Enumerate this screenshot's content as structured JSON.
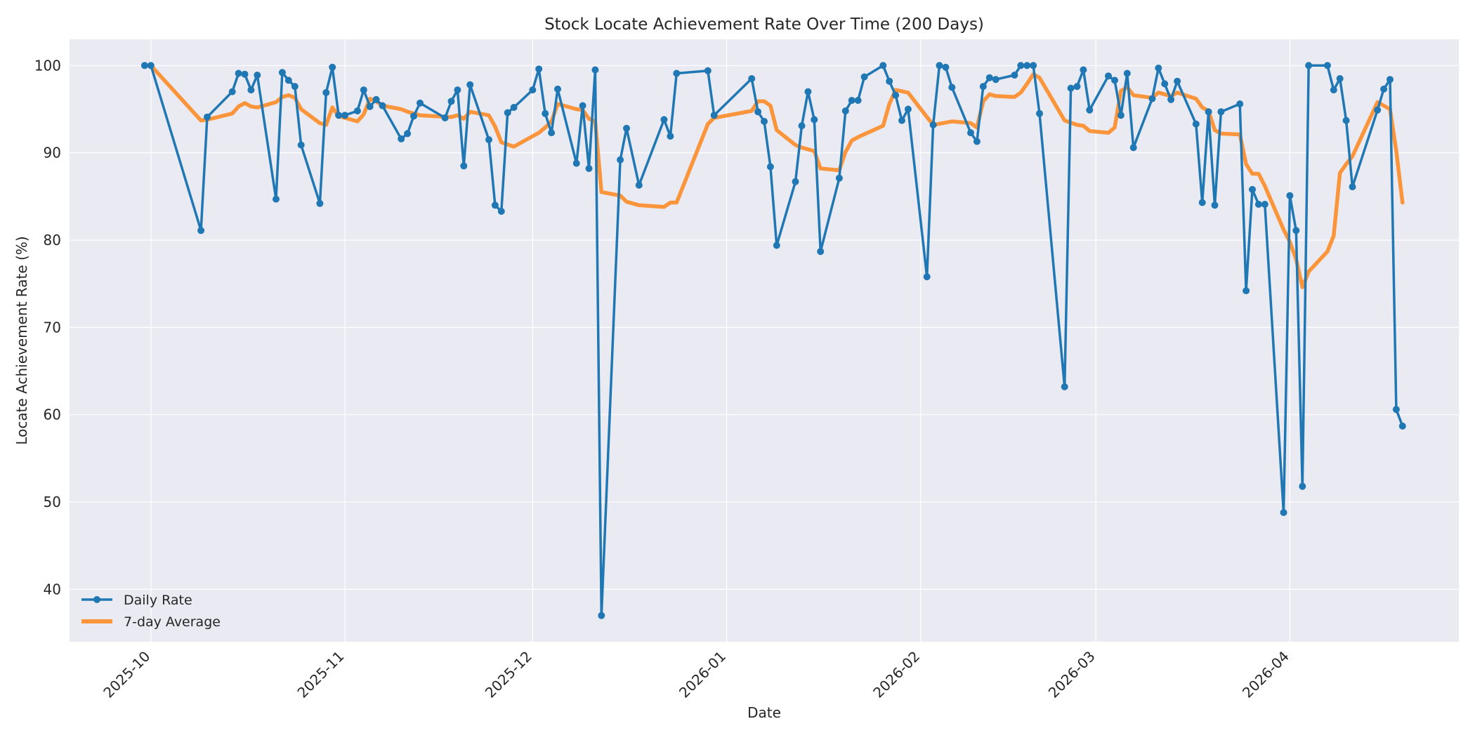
{
  "chart_data": {
    "type": "line",
    "title": "Stock Locate Achievement Rate Over Time (200 Days)",
    "xlabel": "Date",
    "ylabel": "Locate Achievement Rate (%)",
    "x_tick_labels": [
      "2025-10",
      "2025-11",
      "2025-12",
      "2026-01",
      "2026-02",
      "2026-03",
      "2026-04"
    ],
    "x_tick_dates": [
      "2025-10-01",
      "2025-11-01",
      "2025-12-01",
      "2026-01-01",
      "2026-02-01",
      "2026-03-01",
      "2026-04-01"
    ],
    "xlim": [
      "2025-09-18",
      "2026-04-28"
    ],
    "y_ticks": [
      "40",
      "50",
      "60",
      "70",
      "80",
      "90",
      "100"
    ],
    "ylim": [
      34,
      103
    ],
    "grid": true,
    "legend_position": "lower-left",
    "colors": {
      "daily": "#1f77b4",
      "average": "#ff7f0e",
      "background": "#eaeaf2",
      "grid": "#ffffff"
    },
    "series": [
      {
        "name": "Daily Rate",
        "style": "line-with-markers",
        "points": [
          [
            "2025-09-30",
            100.0
          ],
          [
            "2025-10-01",
            100.0
          ],
          [
            "2025-10-09",
            81.1
          ],
          [
            "2025-10-10",
            94.1
          ],
          [
            "2025-10-14",
            97.0
          ],
          [
            "2025-10-15",
            99.1
          ],
          [
            "2025-10-16",
            99.0
          ],
          [
            "2025-10-17",
            97.2
          ],
          [
            "2025-10-18",
            98.9
          ],
          [
            "2025-10-21",
            84.7
          ],
          [
            "2025-10-22",
            99.2
          ],
          [
            "2025-10-23",
            98.3
          ],
          [
            "2025-10-24",
            97.6
          ],
          [
            "2025-10-25",
            90.9
          ],
          [
            "2025-10-28",
            84.2
          ],
          [
            "2025-10-29",
            96.9
          ],
          [
            "2025-10-30",
            99.8
          ],
          [
            "2025-10-31",
            94.3
          ],
          [
            "2025-11-01",
            94.3
          ],
          [
            "2025-11-03",
            94.8
          ],
          [
            "2025-11-04",
            97.2
          ],
          [
            "2025-11-05",
            95.3
          ],
          [
            "2025-11-06",
            96.1
          ],
          [
            "2025-11-07",
            95.4
          ],
          [
            "2025-11-10",
            91.6
          ],
          [
            "2025-11-11",
            92.2
          ],
          [
            "2025-11-12",
            94.2
          ],
          [
            "2025-11-13",
            95.7
          ],
          [
            "2025-11-17",
            94.0
          ],
          [
            "2025-11-18",
            95.9
          ],
          [
            "2025-11-19",
            97.2
          ],
          [
            "2025-11-20",
            88.5
          ],
          [
            "2025-11-21",
            97.8
          ],
          [
            "2025-11-24",
            91.5
          ],
          [
            "2025-11-25",
            84.0
          ],
          [
            "2025-11-26",
            83.3
          ],
          [
            "2025-11-27",
            94.6
          ],
          [
            "2025-11-28",
            95.2
          ],
          [
            "2025-12-01",
            97.2
          ],
          [
            "2025-12-02",
            99.6
          ],
          [
            "2025-12-03",
            94.5
          ],
          [
            "2025-12-04",
            92.3
          ],
          [
            "2025-12-05",
            97.3
          ],
          [
            "2025-12-08",
            88.8
          ],
          [
            "2025-12-09",
            95.4
          ],
          [
            "2025-12-10",
            88.2
          ],
          [
            "2025-12-11",
            99.5
          ],
          [
            "2025-12-12",
            37.0
          ],
          [
            "2025-12-15",
            89.2
          ],
          [
            "2025-12-16",
            92.8
          ],
          [
            "2025-12-18",
            86.3
          ],
          [
            "2025-12-22",
            93.8
          ],
          [
            "2025-12-23",
            91.9
          ],
          [
            "2025-12-24",
            99.1
          ],
          [
            "2025-12-29",
            99.4
          ],
          [
            "2025-12-30",
            94.3
          ],
          [
            "2026-01-05",
            98.5
          ],
          [
            "2026-01-06",
            94.7
          ],
          [
            "2026-01-07",
            93.6
          ],
          [
            "2026-01-08",
            88.4
          ],
          [
            "2026-01-09",
            79.4
          ],
          [
            "2026-01-12",
            86.7
          ],
          [
            "2026-01-13",
            93.1
          ],
          [
            "2026-01-14",
            97.0
          ],
          [
            "2026-01-15",
            93.8
          ],
          [
            "2026-01-16",
            78.7
          ],
          [
            "2026-01-19",
            87.1
          ],
          [
            "2026-01-20",
            94.8
          ],
          [
            "2026-01-21",
            96.0
          ],
          [
            "2026-01-22",
            96.0
          ],
          [
            "2026-01-23",
            98.7
          ],
          [
            "2026-01-26",
            100.0
          ],
          [
            "2026-01-27",
            98.2
          ],
          [
            "2026-01-28",
            96.6
          ],
          [
            "2026-01-29",
            93.7
          ],
          [
            "2026-01-30",
            95.0
          ],
          [
            "2026-02-02",
            75.8
          ],
          [
            "2026-02-03",
            93.2
          ],
          [
            "2026-02-04",
            100.0
          ],
          [
            "2026-02-05",
            99.8
          ],
          [
            "2026-02-06",
            97.5
          ],
          [
            "2026-02-09",
            92.3
          ],
          [
            "2026-02-10",
            91.3
          ],
          [
            "2026-02-11",
            97.6
          ],
          [
            "2026-02-12",
            98.6
          ],
          [
            "2026-02-13",
            98.4
          ],
          [
            "2026-02-16",
            98.9
          ],
          [
            "2026-02-17",
            100.0
          ],
          [
            "2026-02-18",
            100.0
          ],
          [
            "2026-02-19",
            100.0
          ],
          [
            "2026-02-20",
            94.5
          ],
          [
            "2026-02-24",
            63.2
          ],
          [
            "2026-02-25",
            97.4
          ],
          [
            "2026-02-26",
            97.6
          ],
          [
            "2026-02-27",
            99.5
          ],
          [
            "2026-02-28",
            94.9
          ],
          [
            "2026-03-03",
            98.8
          ],
          [
            "2026-03-04",
            98.3
          ],
          [
            "2026-03-05",
            94.3
          ],
          [
            "2026-03-06",
            99.1
          ],
          [
            "2026-03-07",
            90.6
          ],
          [
            "2026-03-10",
            96.2
          ],
          [
            "2026-03-11",
            99.7
          ],
          [
            "2026-03-12",
            97.9
          ],
          [
            "2026-03-13",
            96.1
          ],
          [
            "2026-03-14",
            98.2
          ],
          [
            "2026-03-17",
            93.3
          ],
          [
            "2026-03-18",
            84.3
          ],
          [
            "2026-03-19",
            94.7
          ],
          [
            "2026-03-20",
            84.0
          ],
          [
            "2026-03-21",
            94.7
          ],
          [
            "2026-03-24",
            95.6
          ],
          [
            "2026-03-25",
            74.2
          ],
          [
            "2026-03-26",
            85.8
          ],
          [
            "2026-03-27",
            84.1
          ],
          [
            "2026-03-28",
            84.1
          ],
          [
            "2026-03-31",
            48.8
          ],
          [
            "2026-04-01",
            85.1
          ],
          [
            "2026-04-02",
            81.1
          ],
          [
            "2026-04-03",
            51.8
          ],
          [
            "2026-04-04",
            100.0
          ],
          [
            "2026-04-07",
            100.0
          ],
          [
            "2026-04-08",
            97.2
          ],
          [
            "2026-04-09",
            98.5
          ],
          [
            "2026-04-10",
            93.7
          ],
          [
            "2026-04-11",
            86.1
          ],
          [
            "2026-04-15",
            94.9
          ],
          [
            "2026-04-16",
            97.3
          ],
          [
            "2026-04-17",
            98.4
          ],
          [
            "2026-04-18",
            60.6
          ],
          [
            "2026-04-19",
            58.7
          ]
        ]
      },
      {
        "name": "7-day Average",
        "style": "line",
        "points": [
          [
            "2025-09-30",
            100.0
          ],
          [
            "2025-10-01",
            100.0
          ],
          [
            "2025-10-09",
            93.7
          ],
          [
            "2025-10-10",
            93.8
          ],
          [
            "2025-10-14",
            94.5
          ],
          [
            "2025-10-15",
            95.3
          ],
          [
            "2025-10-16",
            95.7
          ],
          [
            "2025-10-17",
            95.3
          ],
          [
            "2025-10-18",
            95.2
          ],
          [
            "2025-10-21",
            95.8
          ],
          [
            "2025-10-22",
            96.4
          ],
          [
            "2025-10-23",
            96.6
          ],
          [
            "2025-10-24",
            96.3
          ],
          [
            "2025-10-25",
            95.0
          ],
          [
            "2025-10-28",
            93.4
          ],
          [
            "2025-10-29",
            93.2
          ],
          [
            "2025-10-30",
            95.2
          ],
          [
            "2025-10-31",
            94.2
          ],
          [
            "2025-11-03",
            93.6
          ],
          [
            "2025-11-04",
            94.4
          ],
          [
            "2025-11-05",
            96.2
          ],
          [
            "2025-11-06",
            95.9
          ],
          [
            "2025-11-07",
            95.4
          ],
          [
            "2025-11-10",
            95.0
          ],
          [
            "2025-11-11",
            94.7
          ],
          [
            "2025-11-13",
            94.3
          ],
          [
            "2025-11-18",
            94.1
          ],
          [
            "2025-11-19",
            94.3
          ],
          [
            "2025-11-20",
            93.9
          ],
          [
            "2025-11-21",
            94.7
          ],
          [
            "2025-11-24",
            94.3
          ],
          [
            "2025-11-25",
            93.0
          ],
          [
            "2025-11-26",
            91.2
          ],
          [
            "2025-11-28",
            90.7
          ],
          [
            "2025-12-01",
            91.9
          ],
          [
            "2025-12-02",
            92.3
          ],
          [
            "2025-12-03",
            92.9
          ],
          [
            "2025-12-04",
            93.6
          ],
          [
            "2025-12-05",
            95.6
          ],
          [
            "2025-12-08",
            95.0
          ],
          [
            "2025-12-09",
            94.9
          ],
          [
            "2025-12-10",
            93.9
          ],
          [
            "2025-12-11",
            93.6
          ],
          [
            "2025-12-12",
            85.5
          ],
          [
            "2025-12-15",
            85.1
          ],
          [
            "2025-12-16",
            84.4
          ],
          [
            "2025-12-18",
            84.0
          ],
          [
            "2025-12-22",
            83.8
          ],
          [
            "2025-12-23",
            84.3
          ],
          [
            "2025-12-24",
            84.3
          ],
          [
            "2025-12-29",
            93.3
          ],
          [
            "2025-12-30",
            94.0
          ],
          [
            "2026-01-05",
            94.8
          ],
          [
            "2026-01-06",
            95.9
          ],
          [
            "2026-01-07",
            95.9
          ],
          [
            "2026-01-08",
            95.4
          ],
          [
            "2026-01-09",
            92.6
          ],
          [
            "2026-01-12",
            90.9
          ],
          [
            "2026-01-13",
            90.6
          ],
          [
            "2026-01-15",
            90.2
          ],
          [
            "2026-01-16",
            88.2
          ],
          [
            "2026-01-19",
            88.0
          ],
          [
            "2026-01-20",
            90.1
          ],
          [
            "2026-01-21",
            91.4
          ],
          [
            "2026-01-22",
            91.8
          ],
          [
            "2026-01-26",
            93.1
          ],
          [
            "2026-01-27",
            95.6
          ],
          [
            "2026-01-28",
            97.2
          ],
          [
            "2026-01-30",
            96.9
          ],
          [
            "2026-02-02",
            94.1
          ],
          [
            "2026-02-03",
            93.2
          ],
          [
            "2026-02-06",
            93.6
          ],
          [
            "2026-02-09",
            93.4
          ],
          [
            "2026-02-10",
            92.9
          ],
          [
            "2026-02-11",
            95.9
          ],
          [
            "2026-02-12",
            96.7
          ],
          [
            "2026-02-13",
            96.5
          ],
          [
            "2026-02-16",
            96.4
          ],
          [
            "2026-02-17",
            96.9
          ],
          [
            "2026-02-18",
            97.9
          ],
          [
            "2026-02-19",
            99.0
          ],
          [
            "2026-02-20",
            98.6
          ],
          [
            "2026-02-24",
            93.7
          ],
          [
            "2026-02-26",
            93.2
          ],
          [
            "2026-02-27",
            93.1
          ],
          [
            "2026-02-28",
            92.5
          ],
          [
            "2026-03-03",
            92.3
          ],
          [
            "2026-03-04",
            92.9
          ],
          [
            "2026-03-05",
            97.1
          ],
          [
            "2026-03-06",
            97.5
          ],
          [
            "2026-03-07",
            96.6
          ],
          [
            "2026-03-10",
            96.3
          ],
          [
            "2026-03-11",
            96.9
          ],
          [
            "2026-03-13",
            96.5
          ],
          [
            "2026-03-14",
            96.9
          ],
          [
            "2026-03-17",
            96.2
          ],
          [
            "2026-03-18",
            95.2
          ],
          [
            "2026-03-19",
            94.8
          ],
          [
            "2026-03-20",
            92.6
          ],
          [
            "2026-03-21",
            92.2
          ],
          [
            "2026-03-24",
            92.1
          ],
          [
            "2026-03-25",
            88.7
          ],
          [
            "2026-03-26",
            87.6
          ],
          [
            "2026-03-27",
            87.6
          ],
          [
            "2026-03-28",
            86.2
          ],
          [
            "2026-03-31",
            81.2
          ],
          [
            "2026-04-01",
            79.8
          ],
          [
            "2026-04-02",
            77.8
          ],
          [
            "2026-04-03",
            74.6
          ],
          [
            "2026-04-04",
            76.4
          ],
          [
            "2026-04-07",
            78.7
          ],
          [
            "2026-04-08",
            80.5
          ],
          [
            "2026-04-09",
            87.7
          ],
          [
            "2026-04-10",
            88.7
          ],
          [
            "2026-04-11",
            89.6
          ],
          [
            "2026-04-15",
            95.8
          ],
          [
            "2026-04-17",
            95.0
          ],
          [
            "2026-04-18",
            90.2
          ],
          [
            "2026-04-19",
            84.3
          ]
        ]
      }
    ]
  }
}
